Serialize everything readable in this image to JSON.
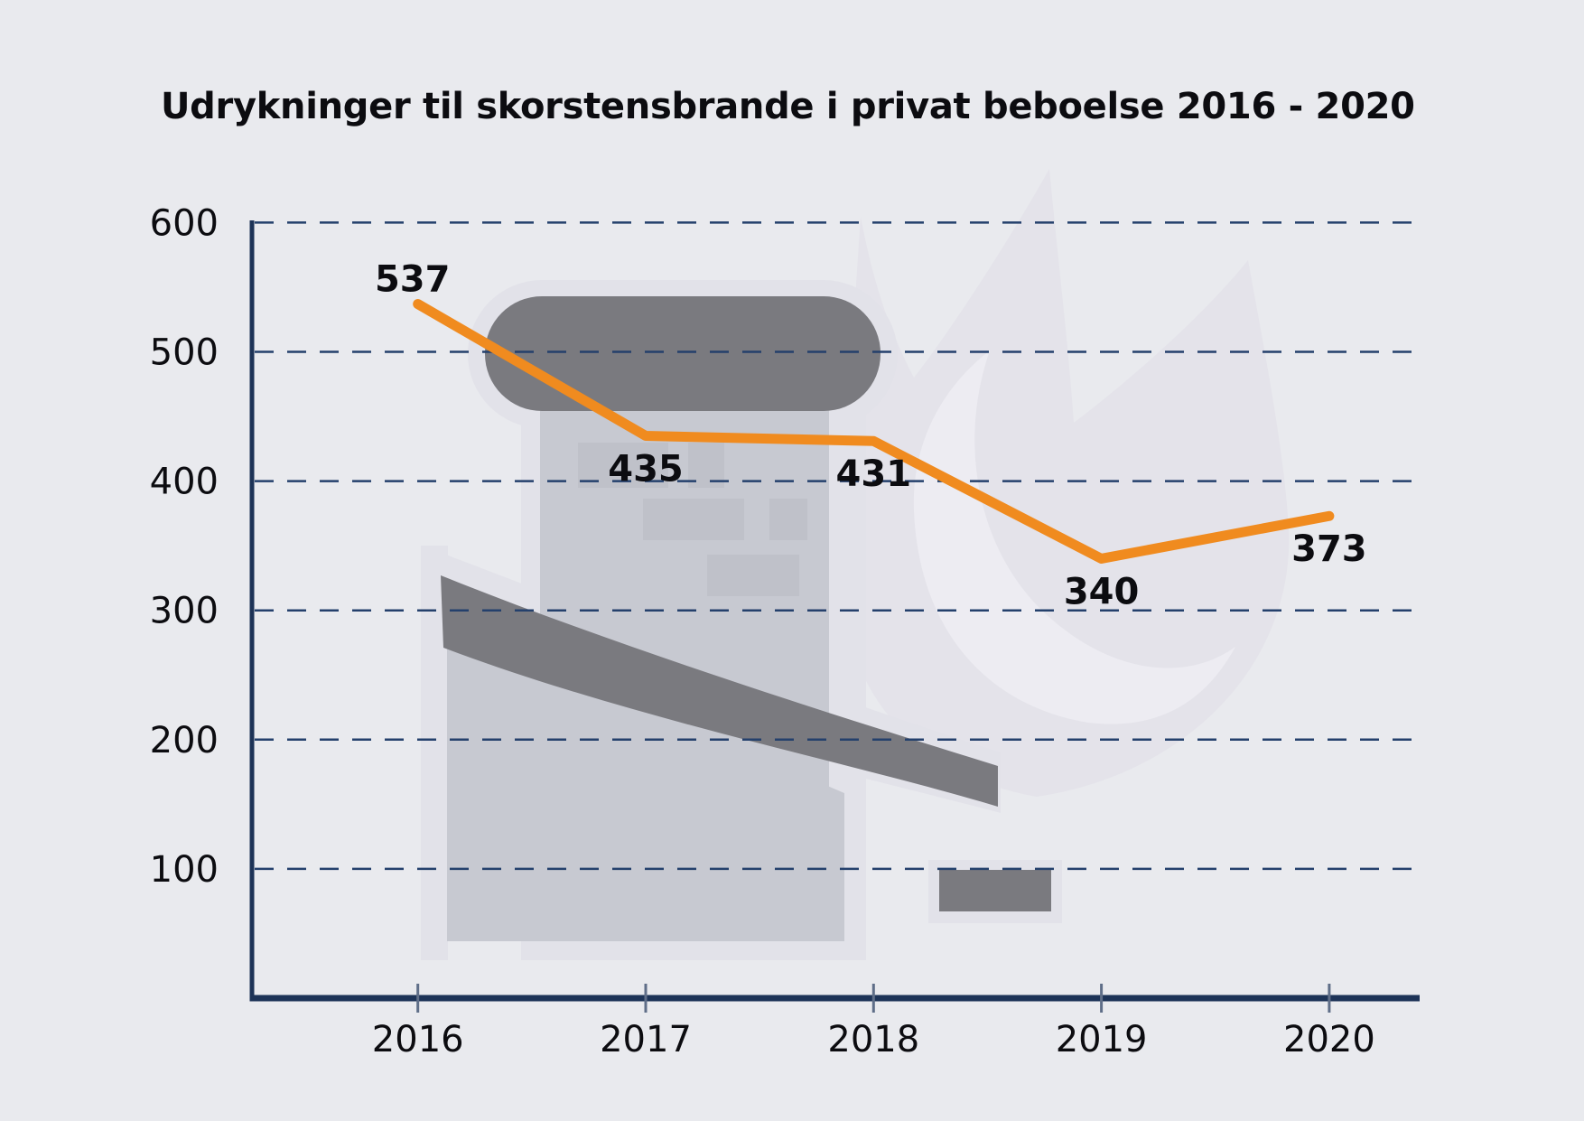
{
  "title": "Udrykninger til skorstensbrande i privat beboelse 2016 - 2020",
  "colors": {
    "background": "#e9eaee",
    "accent_line": "#f08b1f",
    "axis": "#1d3357",
    "grid": "#24406c",
    "tick": "#5f6e88",
    "text": "#0c0c10",
    "illustration": {
      "flame": "#e4e3ea",
      "flame_inner": "#edecf2",
      "halo": "#e2e2e9",
      "wall": "#c7c9d1",
      "brick": "#bfc1c9",
      "dark": "#7a7a7f"
    }
  },
  "chart_data": {
    "type": "line",
    "title": "Udrykninger til skorstensbrande i privat beboelse 2016 - 2020",
    "categories": [
      "2016",
      "2017",
      "2018",
      "2019",
      "2020"
    ],
    "values": [
      537,
      435,
      431,
      340,
      373
    ],
    "data_labels": [
      "537",
      "435",
      "431",
      "340",
      "373"
    ],
    "series_name": "Udrykninger til skorstensbrande",
    "xlabel": "",
    "ylabel": "",
    "ylim": [
      0,
      600
    ],
    "yticks": [
      600,
      500,
      400,
      300,
      200,
      100
    ],
    "grid": "horizontal-dashed",
    "legend_position": "none",
    "line_color": "#f08b1f",
    "background_motif": "chimney-on-roof-with-flames watermark"
  }
}
